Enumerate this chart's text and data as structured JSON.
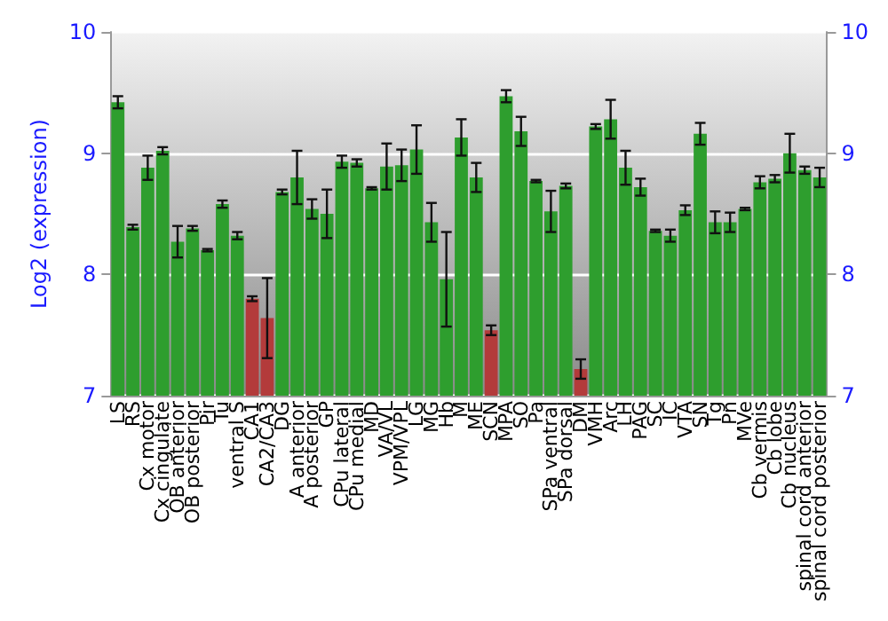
{
  "chart_data": {
    "type": "bar",
    "ylabel": "Log2 (expression)",
    "categories": [
      "LS",
      "RS",
      "Cx motor",
      "Cx cingulate",
      "OB anterior",
      "OB posterior",
      "Pir",
      "Tu",
      "ventral S",
      "CA1",
      "CA2/CA3",
      "DG",
      "A anterior",
      "A posterior",
      "GP",
      "CPu lateral",
      "CPu medial",
      "MD",
      "VA/VL",
      "VPM/VPL",
      "LG",
      "MG",
      "Hb",
      "M",
      "ME",
      "SCN",
      "MPA",
      "SO",
      "Pa",
      "SPa ventral",
      "SPa dorsal",
      "DM",
      "VMH",
      "Arc",
      "LH",
      "PAG",
      "SC",
      "IC",
      "VTA",
      "SN",
      "Tg",
      "Pn",
      "MVe",
      "Cb vermis",
      "Cb lobe",
      "Cb nucleus",
      "spinal cord anterior",
      "spinal cord posterior"
    ],
    "values": [
      9.42,
      8.39,
      8.88,
      9.02,
      8.27,
      8.38,
      8.2,
      8.58,
      8.32,
      7.8,
      7.64,
      8.68,
      8.8,
      8.54,
      8.5,
      8.93,
      8.92,
      8.71,
      8.89,
      8.9,
      9.03,
      8.43,
      7.96,
      9.13,
      8.8,
      7.54,
      9.47,
      9.18,
      8.77,
      8.52,
      8.73,
      7.22,
      9.22,
      9.28,
      8.88,
      8.72,
      8.36,
      8.32,
      8.53,
      9.16,
      8.43,
      8.43,
      8.54,
      8.76,
      8.79,
      9.0,
      8.86,
      8.8
    ],
    "errors": [
      0.05,
      0.02,
      0.1,
      0.03,
      0.13,
      0.02,
      0.01,
      0.03,
      0.03,
      0.02,
      0.33,
      0.02,
      0.22,
      0.08,
      0.2,
      0.05,
      0.03,
      0.01,
      0.19,
      0.13,
      0.2,
      0.16,
      0.39,
      0.15,
      0.12,
      0.04,
      0.05,
      0.12,
      0.01,
      0.17,
      0.02,
      0.08,
      0.02,
      0.16,
      0.14,
      0.07,
      0.01,
      0.05,
      0.04,
      0.09,
      0.09,
      0.08,
      0.01,
      0.05,
      0.03,
      0.16,
      0.03,
      0.08
    ],
    "colors": [
      "#2e9e2e",
      "#2e9e2e",
      "#2e9e2e",
      "#2e9e2e",
      "#2e9e2e",
      "#2e9e2e",
      "#2e9e2e",
      "#2e9e2e",
      "#2e9e2e",
      "#b33b3b",
      "#b33b3b",
      "#2e9e2e",
      "#2e9e2e",
      "#2e9e2e",
      "#2e9e2e",
      "#2e9e2e",
      "#2e9e2e",
      "#2e9e2e",
      "#2e9e2e",
      "#2e9e2e",
      "#2e9e2e",
      "#2e9e2e",
      "#2e9e2e",
      "#2e9e2e",
      "#2e9e2e",
      "#b33b3b",
      "#2e9e2e",
      "#2e9e2e",
      "#2e9e2e",
      "#2e9e2e",
      "#2e9e2e",
      "#b33b3b",
      "#2e9e2e",
      "#2e9e2e",
      "#2e9e2e",
      "#2e9e2e",
      "#2e9e2e",
      "#2e9e2e",
      "#2e9e2e",
      "#2e9e2e",
      "#2e9e2e",
      "#2e9e2e",
      "#2e9e2e",
      "#2e9e2e",
      "#2e9e2e",
      "#2e9e2e",
      "#2e9e2e",
      "#2e9e2e"
    ],
    "ylim": [
      7,
      10
    ],
    "yticks": [
      7,
      8,
      9,
      10
    ],
    "y2lim": [
      7,
      10
    ],
    "y2ticks": [
      7,
      8,
      9,
      10
    ],
    "grid": "y"
  }
}
